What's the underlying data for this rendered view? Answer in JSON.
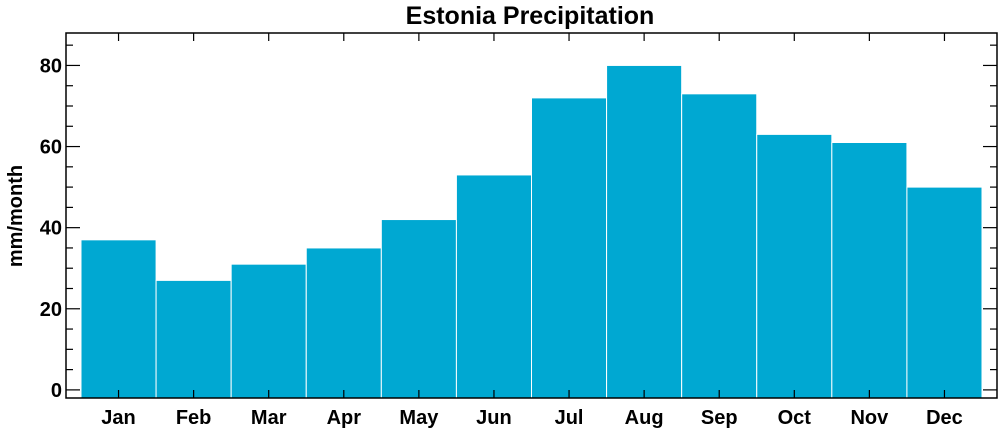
{
  "chart_data": {
    "type": "bar",
    "title": "Estonia Precipitation",
    "xlabel": "",
    "ylabel": "mm/month",
    "categories": [
      "Jan",
      "Feb",
      "Mar",
      "Apr",
      "May",
      "Jun",
      "Jul",
      "Aug",
      "Sep",
      "Oct",
      "Nov",
      "Dec"
    ],
    "values": [
      37,
      27,
      31,
      35,
      42,
      53,
      72,
      80,
      73,
      63,
      61,
      50
    ],
    "ylim": [
      -2,
      88
    ],
    "yticks": [
      0,
      20,
      40,
      60,
      80
    ],
    "yminor_step": 5,
    "grid": false,
    "bar_color": "#00a8d2",
    "bar_edge_color": "#ffffff"
  }
}
